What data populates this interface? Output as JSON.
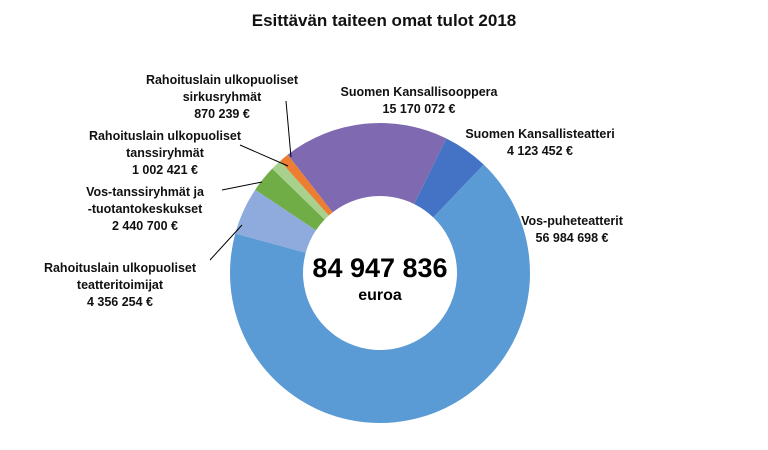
{
  "chart_data": {
    "type": "pie",
    "title": "Esittävän taiteen omat tulot 2018",
    "center_value": "84 947 836",
    "center_unit": "euroa",
    "slices": [
      {
        "name": "Suomen Kansallisooppera",
        "value": 15170072,
        "label": "15 170 072 €",
        "color": "#7f69b0"
      },
      {
        "name": "Suomen Kansallisteatteri",
        "value": 4123452,
        "label": "4 123 452 €",
        "color": "#4472c4"
      },
      {
        "name": "Vos-puheteatterit",
        "value": 56984698,
        "label": "56 984 698 €",
        "color": "#5b9bd5"
      },
      {
        "name": "Rahoituslain ulkopuoliset teatteritoimijat",
        "value": 4356254,
        "label": "4 356 254 €",
        "color": "#8faadc"
      },
      {
        "name": "Vos-tanssiryhmät ja -tuotantokeskukset",
        "value": 2440700,
        "label": "2 440 700 €",
        "color": "#70ad47"
      },
      {
        "name": "Rahoituslain ulkopuoliset tanssiryhmät",
        "value": 1002421,
        "label": "1 002 421 €",
        "color": "#a9d18e"
      },
      {
        "name": "Rahoituslain ulkopuoliset sirkusryhmät",
        "value": 870239,
        "label": "870 239 €",
        "color": "#ed7d31"
      }
    ],
    "label_lines": [
      [
        "Suomen Kansallisooppera"
      ],
      [
        "Suomen Kansallisteatteri"
      ],
      [
        "Vos-puheteatterit"
      ],
      [
        "Rahoituslain ulkopuoliset",
        "teatteritoimijat"
      ],
      [
        "Vos-tanssiryhmät ja",
        "-tuotantokeskukset"
      ],
      [
        "Rahoituslain ulkopuoliset",
        "tanssiryhmät"
      ],
      [
        "Rahoituslain ulkopuoliset",
        "sirkusryhmät"
      ]
    ]
  }
}
